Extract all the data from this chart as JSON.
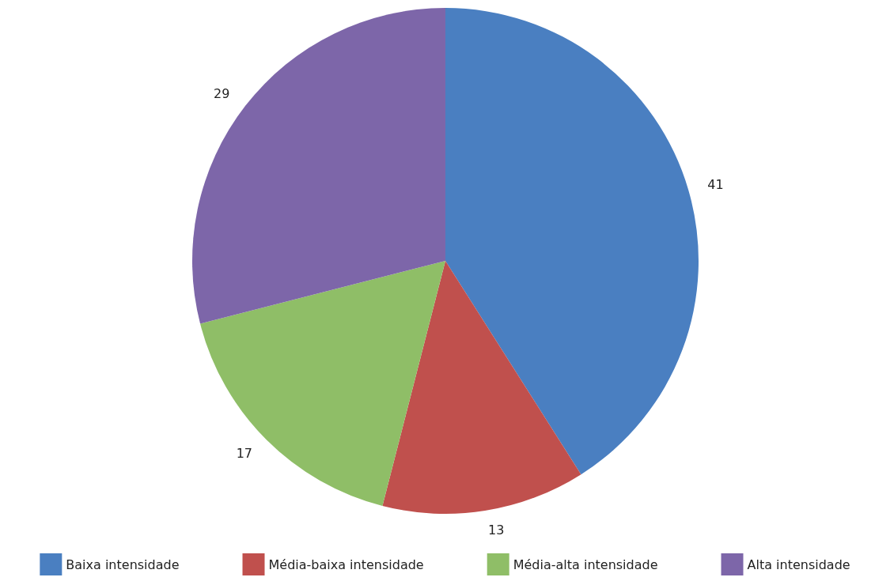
{
  "chart_data": {
    "type": "pie",
    "categories": [
      "Baixa intensidade",
      "Média-baixa intensidade",
      "Média-alta intensidade",
      "Alta intensidade"
    ],
    "values": [
      41,
      13,
      17,
      29
    ],
    "colors": [
      "#4a7fc1",
      "#c0504d",
      "#8fbe67",
      "#7d66a9"
    ],
    "data_labels": true,
    "legend": "bottom"
  }
}
